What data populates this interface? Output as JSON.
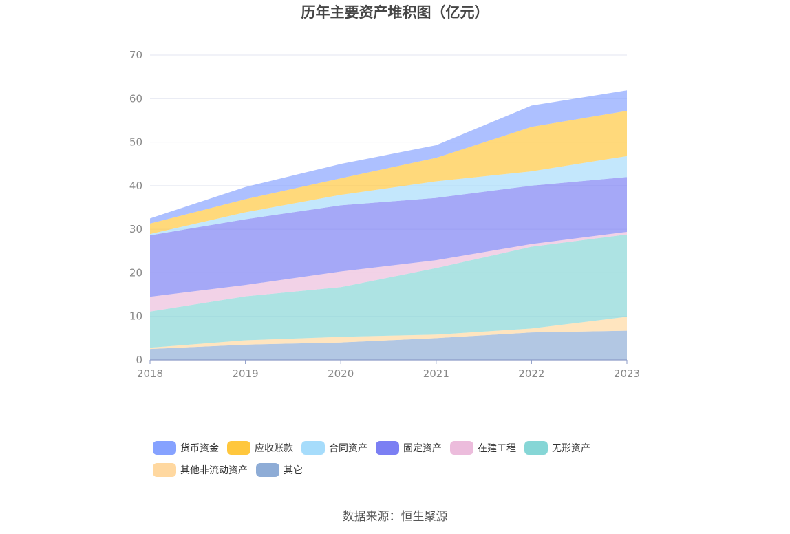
{
  "chart_data": {
    "type": "area",
    "stacked": true,
    "title": "历年主要资产堆积图（亿元）",
    "x": [
      "2018",
      "2019",
      "2020",
      "2021",
      "2022",
      "2023"
    ],
    "ylim": [
      0,
      70
    ],
    "yticks": [
      0,
      10,
      20,
      30,
      40,
      50,
      60,
      70
    ],
    "grid": true,
    "legend_position": "bottom",
    "series": [
      {
        "name": "其它",
        "color": "#8eacd6",
        "values": [
          2.5,
          3.5,
          4.0,
          5.0,
          6.3,
          6.7
        ]
      },
      {
        "name": "其他非流动资产",
        "color": "#ffd8a0",
        "values": [
          0.3,
          1.0,
          1.3,
          0.8,
          0.9,
          3.2
        ]
      },
      {
        "name": "无形资产",
        "color": "#86d6d6",
        "values": [
          8.3,
          10.1,
          11.4,
          15.3,
          18.8,
          18.9
        ]
      },
      {
        "name": "在建工程",
        "color": "#ecbcdc",
        "values": [
          3.4,
          2.6,
          3.6,
          1.8,
          0.6,
          0.6
        ]
      },
      {
        "name": "固定资产",
        "color": "#7b7ff3",
        "values": [
          14.1,
          15.1,
          15.2,
          14.3,
          13.4,
          12.6
        ]
      },
      {
        "name": "合同资产",
        "color": "#a6dcfb",
        "values": [
          0.3,
          1.6,
          2.4,
          3.8,
          3.3,
          4.8
        ]
      },
      {
        "name": "应收账款",
        "color": "#ffc73d",
        "values": [
          2.4,
          3.0,
          3.8,
          5.4,
          10.2,
          10.4
        ]
      },
      {
        "name": "货币资金",
        "color": "#86a2ff",
        "values": [
          1.2,
          2.8,
          3.3,
          2.9,
          4.9,
          4.7
        ]
      }
    ]
  },
  "legend_order": [
    {
      "name": "货币资金",
      "color": "#86a2ff"
    },
    {
      "name": "应收账款",
      "color": "#ffc73d"
    },
    {
      "name": "合同资产",
      "color": "#a6dcfb"
    },
    {
      "name": "固定资产",
      "color": "#7b7ff3"
    },
    {
      "name": "在建工程",
      "color": "#ecbcdc"
    },
    {
      "name": "无形资产",
      "color": "#86d6d6"
    },
    {
      "name": "其他非流动资产",
      "color": "#ffd8a0"
    },
    {
      "name": "其它",
      "color": "#8eacd6"
    }
  ],
  "source": "数据来源：恒生聚源"
}
